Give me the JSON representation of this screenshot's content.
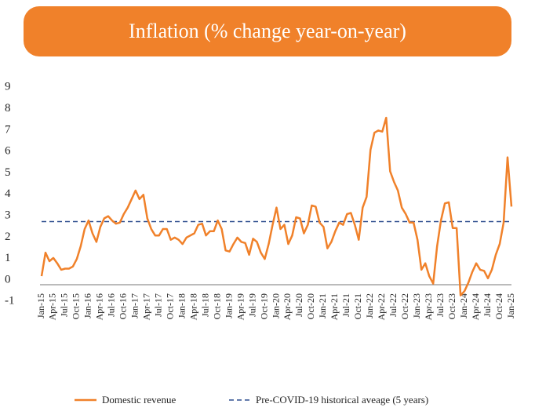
{
  "chart_data": {
    "type": "line",
    "title": "Inflation (% change year-on-year)",
    "categories": [
      "Jan-15",
      null,
      null,
      "Apr-15",
      null,
      null,
      "Jul-15",
      null,
      null,
      "Oct-15",
      null,
      null,
      "Jan-16",
      null,
      null,
      "Apr-16",
      null,
      null,
      "Jul-16",
      null,
      null,
      "Oct-16",
      null,
      null,
      "Jan-17",
      null,
      null,
      "Apr-17",
      null,
      null,
      "Jul-17",
      null,
      null,
      "Oct-17",
      null,
      null,
      "Jan-18",
      null,
      null,
      "Apr-18",
      null,
      null,
      "Jul-18",
      null,
      null,
      "Oct-18",
      null,
      null,
      "Jan-19",
      null,
      null,
      "Apr-19",
      null,
      null,
      "Jul-19",
      null,
      null,
      "Oct-19",
      null,
      null,
      "Jan-20",
      null,
      null,
      "Apr-20",
      null,
      null,
      "Jul-20",
      null,
      null,
      "Oct-20",
      null,
      null,
      "Jan-21",
      null,
      null,
      "Apr-21",
      null,
      null,
      "Jul-21",
      null,
      null,
      "Oct-21",
      null,
      null,
      "Jan-22",
      null,
      null,
      "Apr-22",
      null,
      null,
      "Jul-22",
      null,
      null,
      "Oct-22",
      null,
      null,
      "Jan-23",
      null,
      null,
      "Apr-23",
      null,
      null,
      "Jul-23",
      null,
      null,
      "Oct-23",
      null,
      null,
      "Jan-24",
      null,
      null,
      "Apr-24",
      null,
      null,
      "Jul-24",
      null,
      null,
      "Oct-24",
      null,
      null,
      "Jan-25"
    ],
    "series": [
      {
        "name": "Domestic revenue",
        "color": "#f0812a",
        "values": [
          0.4,
          1.5,
          1.1,
          1.25,
          1.0,
          0.7,
          0.75,
          0.75,
          0.85,
          1.2,
          1.8,
          2.6,
          3.0,
          2.4,
          2.0,
          2.7,
          3.1,
          3.2,
          3.0,
          2.85,
          2.9,
          3.3,
          3.6,
          4.0,
          4.4,
          4.0,
          4.2,
          3.1,
          2.6,
          2.3,
          2.3,
          2.6,
          2.6,
          2.1,
          2.2,
          2.1,
          1.9,
          2.2,
          2.3,
          2.4,
          2.8,
          2.85,
          2.3,
          2.5,
          2.5,
          3.0,
          2.6,
          1.6,
          1.55,
          1.9,
          2.2,
          2.0,
          1.95,
          1.4,
          2.15,
          2.0,
          1.5,
          1.2,
          1.9,
          2.8,
          3.6,
          2.6,
          2.8,
          1.9,
          2.3,
          3.15,
          3.1,
          2.4,
          2.8,
          3.7,
          3.65,
          2.9,
          2.7,
          1.7,
          2.0,
          2.5,
          2.9,
          2.8,
          3.3,
          3.35,
          2.8,
          2.1,
          3.6,
          4.1,
          6.3,
          7.1,
          7.2,
          7.15,
          7.8,
          5.3,
          4.8,
          4.4,
          3.6,
          3.3,
          2.9,
          2.9,
          2.1,
          0.7,
          1.0,
          0.4,
          0.05,
          1.8,
          3.0,
          3.8,
          3.85,
          2.65,
          2.65,
          -0.5,
          -0.3,
          0.1,
          0.6,
          1.0,
          0.7,
          0.65,
          0.3,
          0.7,
          1.4,
          1.9,
          2.9,
          5.95,
          3.65
        ]
      }
    ],
    "reference_line": {
      "name": "Pre-COVID-19 historical aveage (5 years)",
      "value": 2.95,
      "color": "#2f4f8f"
    },
    "ylim": [
      -1,
      9
    ],
    "yticks": [
      -1,
      0,
      1,
      2,
      3,
      4,
      5,
      6,
      7,
      8,
      9
    ],
    "legend": "bottom"
  }
}
